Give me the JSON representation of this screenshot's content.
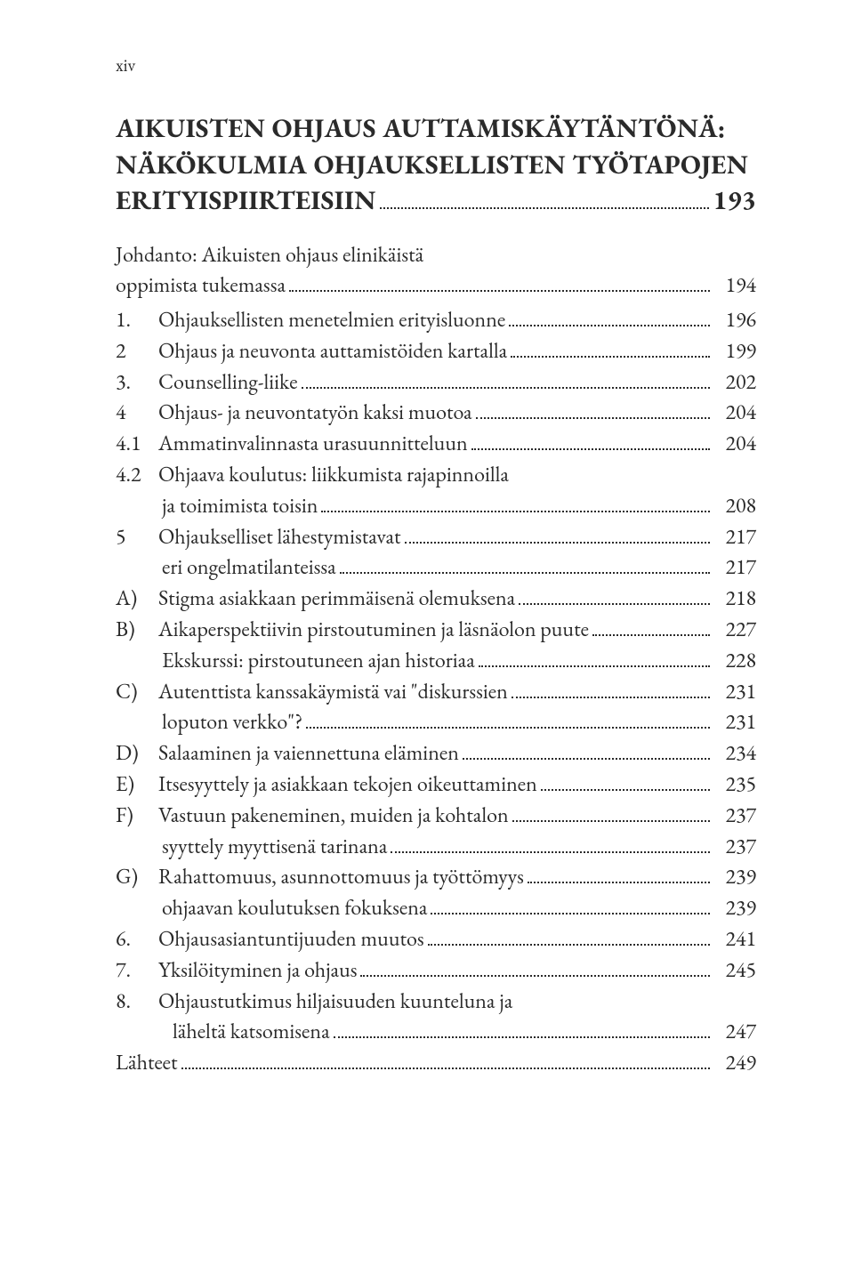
{
  "page_number_roman": "xiv",
  "section_heading": [
    "AIKUISTEN OHJAUS AUTTAMISKÄYTÄNTÖNÄ:",
    "NÄKÖKULMIA OHJAUKSELLISTEN TYÖTAPOJEN",
    "ERITYISPIIRTEISIIN"
  ],
  "section_page": "193",
  "intro_line1": "Johdanto: Aikuisten ohjaus elinikäistä",
  "intro_line2": "oppimista tukemassa",
  "intro_page": "194",
  "entries": [
    {
      "marker": "1.",
      "label": "Ohjauksellisten menetelmien erityisluonne",
      "page": "196"
    },
    {
      "marker": "2",
      "label": "Ohjaus ja neuvonta auttamistöiden kartalla",
      "page": "199"
    },
    {
      "marker": "3.",
      "label": "Counselling-liike",
      "page": "202"
    },
    {
      "marker": "4",
      "label": "Ohjaus- ja neuvontatyön kaksi muotoa",
      "page": "204"
    },
    {
      "marker": "4.1",
      "label": "Ammatinvalinnasta urasuunnitteluun",
      "page": "204"
    },
    {
      "marker": "4.2",
      "label": "Ohjaava koulutus: liikkumista rajapinnoilla",
      "cont_label": "ja toimimista toisin",
      "cont_page": "208"
    },
    {
      "marker": "5",
      "label": "Ohjaukselliset lähestymistavat",
      "page": "217",
      "cont_label": "eri ongelmatilanteissa",
      "cont_page": "217"
    },
    {
      "marker": "A)",
      "label": "Stigma asiakkaan perimmäisenä olemuksena",
      "page": "218"
    },
    {
      "marker": "B)",
      "label": "Aikaperspektiivin pirstoutuminen ja läsnäolon puute",
      "page": "227",
      "cont_label": "Ekskurssi: pirstoutuneen ajan historiaa",
      "cont_page": "228"
    },
    {
      "marker": "C)",
      "label": "Autenttista kanssakäymistä vai \"diskurssien",
      "page": "231",
      "cont_label": "loputon verkko\"?",
      "cont_page": "231"
    },
    {
      "marker": "D)",
      "label": " Salaaminen ja vaiennettuna eläminen",
      "page": "234"
    },
    {
      "marker": "E)",
      "label": "Itsesyyttely ja asiakkaan tekojen oikeuttaminen",
      "page": "235"
    },
    {
      "marker": "F)",
      "label": "Vastuun pakeneminen, muiden ja kohtalon",
      "page": "237",
      "cont_label": "syyttely myyttisenä tarinana",
      "cont_page": "237"
    },
    {
      "marker": "G)",
      "label": " Rahattomuus, asunnottomuus ja työttömyys",
      "page": "239",
      "cont_label": "ohjaavan koulutuksen fokuksena",
      "cont_page": "239"
    },
    {
      "marker": "6.",
      "label": "Ohjausasiantuntijuuden muutos",
      "page": "241"
    },
    {
      "marker": "7.",
      "label": "Yksilöityminen ja ohjaus",
      "page": "245"
    },
    {
      "marker": "8.",
      "label": "Ohjaustutkimus hiljaisuuden kuunteluna ja",
      "cont_indent": "indent2",
      "cont_label": "läheltä katsomisena",
      "cont_page": "247"
    }
  ],
  "lahteet_label": "Lähteet",
  "lahteet_page": "249"
}
